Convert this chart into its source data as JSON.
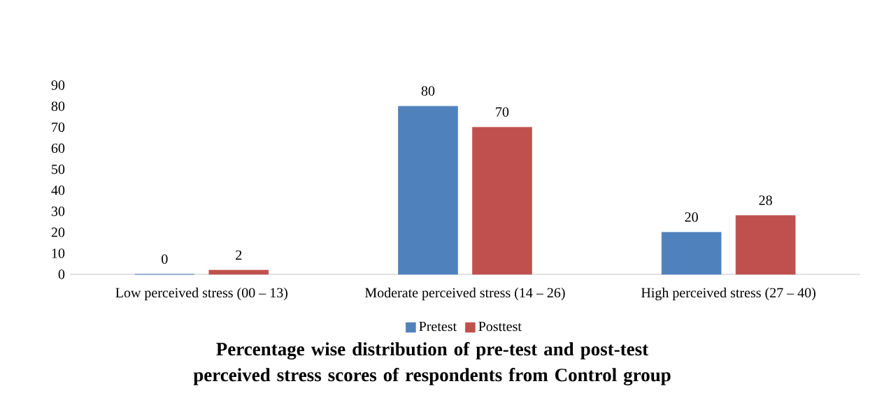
{
  "chart_data": {
    "type": "bar",
    "title": "Percentage wise distribution of pre-test and post-test perceived stress scores of respondents from Control group",
    "categories": [
      "Low perceived stress (00 – 13)",
      "Moderate perceived stress (14 – 26)",
      "High perceived stress (27 – 40)"
    ],
    "series": [
      {
        "name": "Pretest",
        "color": "#4f81bd",
        "values": [
          0,
          80,
          20
        ]
      },
      {
        "name": "Posttest",
        "color": "#c0504d",
        "values": [
          2,
          70,
          28
        ]
      }
    ],
    "ylim": [
      0,
      90
    ],
    "yticks": [
      0,
      10,
      20,
      30,
      40,
      50,
      60,
      70,
      80,
      90
    ],
    "data_labels": true,
    "grid": false,
    "legend": "bottom"
  }
}
